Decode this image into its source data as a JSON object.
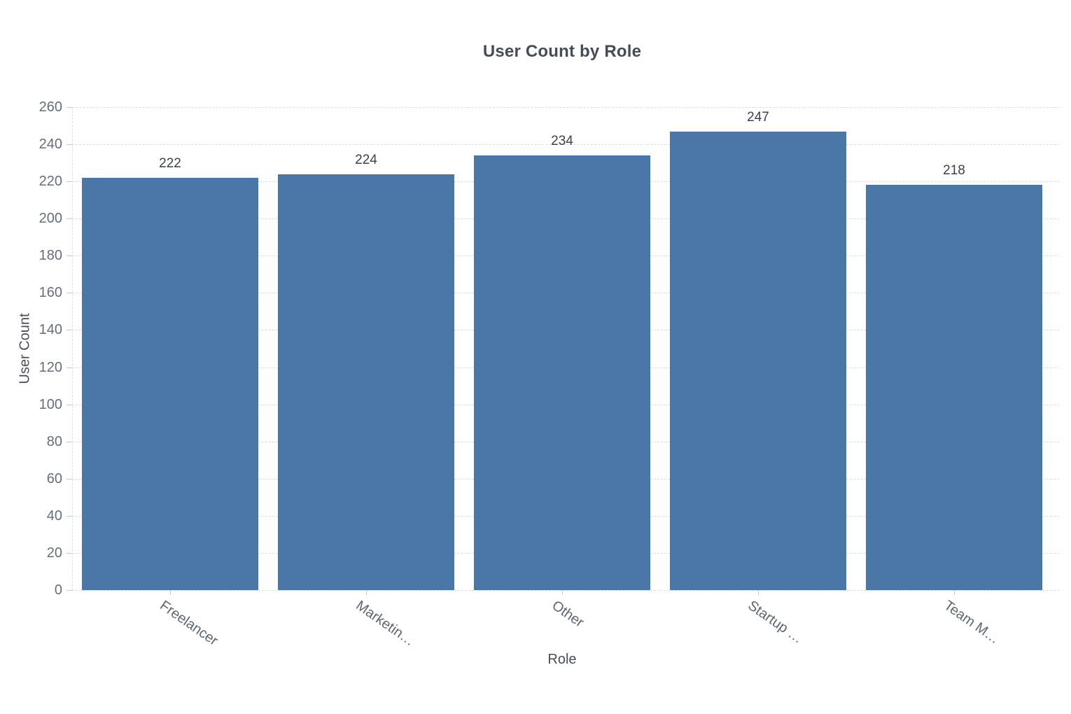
{
  "chart_data": {
    "type": "bar",
    "title": "User Count by Role",
    "xlabel": "Role",
    "ylabel": "User Count",
    "categories": [
      "Freelancer",
      "Marketin…",
      "Other",
      "Startup …",
      "Team M…"
    ],
    "values": [
      222,
      224,
      234,
      247,
      218
    ],
    "ylim": [
      0,
      260
    ],
    "yticks": [
      0,
      20,
      40,
      60,
      80,
      100,
      120,
      140,
      160,
      180,
      200,
      220,
      240,
      260
    ],
    "grid": "horizontal-dashed",
    "legend_position": "none",
    "value_labels_shown": true
  },
  "colors": {
    "bar": "#4a77a8",
    "grid_line": "#d9dde3",
    "axis_line": "#d9dde3",
    "tick_mark": "#c3c8d0",
    "y_tick_label": "#666e7c",
    "x_tick_label": "#5e6673",
    "axis_title": "#474e5a",
    "value_label": "#3b414b",
    "title": "#454c57",
    "background": "#ffffff"
  }
}
